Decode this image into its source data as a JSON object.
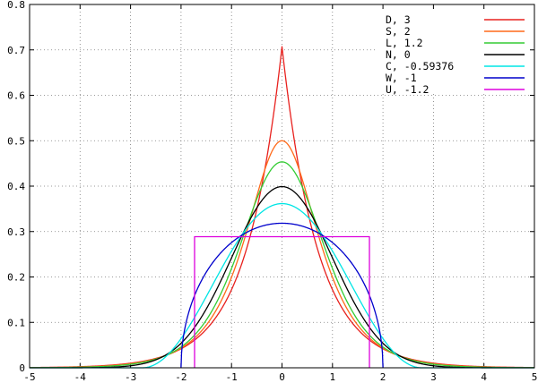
{
  "chart_data": {
    "type": "line",
    "title": "",
    "xlabel": "",
    "ylabel": "",
    "xlim": [
      -5,
      5
    ],
    "ylim": [
      0,
      0.8
    ],
    "grid": true,
    "legend_position": "top-right",
    "x_ticks": [
      "-5",
      "-4",
      "-3",
      "-2",
      "-1",
      "0",
      "1",
      "2",
      "3",
      "4",
      "5"
    ],
    "y_ticks": [
      "0",
      "0.1",
      "0.2",
      "0.3",
      "0.4",
      "0.5",
      "0.6",
      "0.7",
      "0.8"
    ],
    "series": [
      {
        "name": "D,  3",
        "kurtosis": 3,
        "distribution": "laplace",
        "color": "#e8211e",
        "peak": 0.7071
      },
      {
        "name": "S,  2",
        "kurtosis": 2,
        "distribution": "hyperbolic-secant",
        "color": "#ff6a1a",
        "peak": 0.5
      },
      {
        "name": "L,  1.2",
        "kurtosis": 1.2,
        "distribution": "logistic",
        "color": "#33cc33",
        "peak": 0.4534
      },
      {
        "name": "N,  0",
        "kurtosis": 0,
        "distribution": "normal",
        "color": "#000000",
        "peak": 0.3989
      },
      {
        "name": "C, -0.59376",
        "kurtosis": -0.59376,
        "distribution": "raised-cosine",
        "color": "#00e5e5",
        "peak": 0.3607
      },
      {
        "name": "W, -1",
        "kurtosis": -1,
        "distribution": "wigner-semicircle",
        "color": "#0000cc",
        "peak": 0.3183
      },
      {
        "name": "U, -1.2",
        "kurtosis": -1.2,
        "distribution": "uniform",
        "color": "#dd00dd",
        "peak": 0.2887
      }
    ]
  }
}
